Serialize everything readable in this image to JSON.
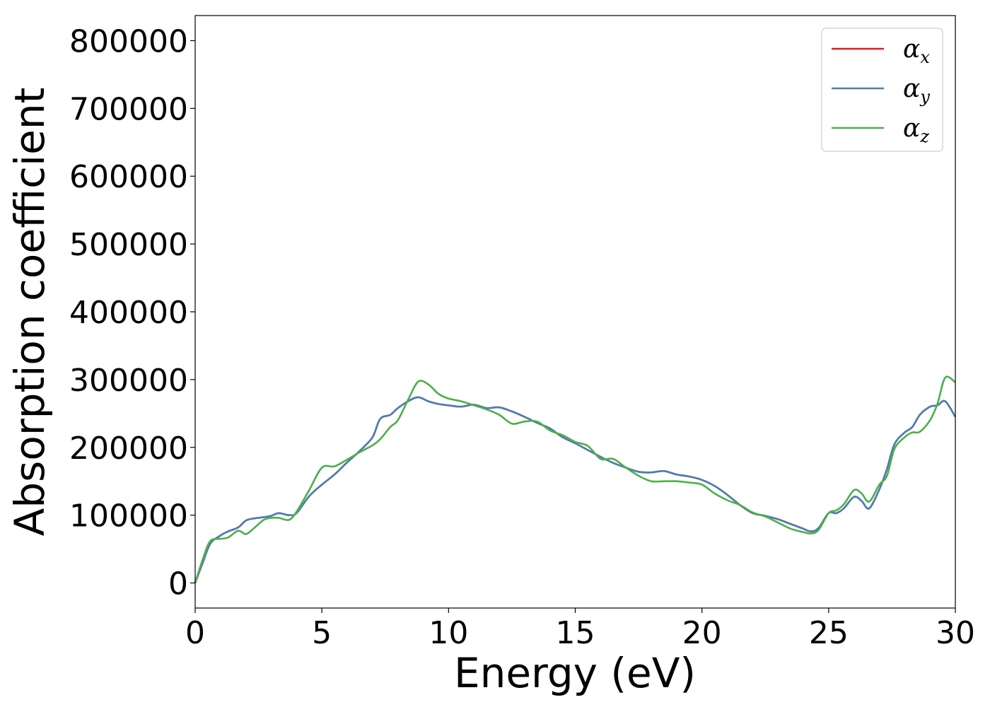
{
  "chart_data": {
    "type": "line",
    "title": "",
    "xlabel": "Energy (eV)",
    "ylabel": "Absorption coefficient",
    "xlim": [
      0,
      30
    ],
    "ylim": [
      -37000,
      837000
    ],
    "xticks": [
      0,
      5,
      10,
      15,
      20,
      25,
      30
    ],
    "yticks": [
      0,
      100000,
      200000,
      300000,
      400000,
      500000,
      600000,
      700000,
      800000
    ],
    "grid": false,
    "legend": "top-right",
    "series": [
      {
        "name": "α",
        "name_sub": "x",
        "color": "#e41a1c",
        "x": [
          0,
          0.3,
          0.6,
          1,
          1.3,
          1.7,
          2,
          2.3,
          2.7,
          3,
          3.3,
          3.7,
          4,
          4.5,
          5,
          5.5,
          6,
          6.5,
          7,
          7.3,
          7.7,
          8,
          8.4,
          8.8,
          9.2,
          9.6,
          10,
          10.5,
          11,
          11.5,
          12,
          12.5,
          13,
          13.5,
          14,
          14.5,
          15,
          15.5,
          16,
          16.5,
          17,
          17.5,
          18,
          18.5,
          19,
          19.5,
          20,
          20.5,
          21,
          21.5,
          22,
          22.5,
          23,
          23.5,
          24,
          24.3,
          24.6,
          25,
          25.3,
          25.6,
          26,
          26.3,
          26.6,
          27,
          27.3,
          27.6,
          28,
          28.3,
          28.6,
          29,
          29.3,
          29.6,
          30
        ],
        "y": [
          0,
          30000,
          58000,
          70000,
          76000,
          82000,
          92000,
          95000,
          97000,
          99000,
          103000,
          100000,
          103000,
          128000,
          145000,
          160000,
          178000,
          195000,
          215000,
          242000,
          248000,
          258000,
          268000,
          274000,
          268000,
          264000,
          262000,
          260000,
          263000,
          258000,
          259000,
          253000,
          245000,
          236000,
          228000,
          215000,
          206000,
          196000,
          186000,
          177000,
          170000,
          164000,
          163000,
          165000,
          160000,
          157000,
          152000,
          143000,
          130000,
          115000,
          103000,
          99000,
          94000,
          87000,
          80000,
          76000,
          81000,
          103000,
          103000,
          110000,
          127000,
          121000,
          110000,
          138000,
          168000,
          205000,
          222000,
          230000,
          248000,
          260000,
          262000,
          268000,
          245000
        ]
      },
      {
        "name": "α",
        "name_sub": "y",
        "color": "#4a7fb3",
        "x": [
          0,
          0.3,
          0.6,
          1,
          1.3,
          1.7,
          2,
          2.3,
          2.7,
          3,
          3.3,
          3.7,
          4,
          4.5,
          5,
          5.5,
          6,
          6.5,
          7,
          7.3,
          7.7,
          8,
          8.4,
          8.8,
          9.2,
          9.6,
          10,
          10.5,
          11,
          11.5,
          12,
          12.5,
          13,
          13.5,
          14,
          14.5,
          15,
          15.5,
          16,
          16.5,
          17,
          17.5,
          18,
          18.5,
          19,
          19.5,
          20,
          20.5,
          21,
          21.5,
          22,
          22.5,
          23,
          23.5,
          24,
          24.3,
          24.6,
          25,
          25.3,
          25.6,
          26,
          26.3,
          26.6,
          27,
          27.3,
          27.6,
          28,
          28.3,
          28.6,
          29,
          29.3,
          29.6,
          30
        ],
        "y": [
          0,
          30000,
          58000,
          70000,
          76000,
          82000,
          92000,
          95000,
          97000,
          99000,
          103000,
          100000,
          103000,
          128000,
          145000,
          160000,
          178000,
          195000,
          215000,
          242000,
          248000,
          258000,
          268000,
          274000,
          268000,
          264000,
          262000,
          260000,
          263000,
          258000,
          259000,
          253000,
          245000,
          236000,
          228000,
          215000,
          206000,
          196000,
          186000,
          177000,
          170000,
          164000,
          163000,
          165000,
          160000,
          157000,
          152000,
          143000,
          130000,
          115000,
          103000,
          99000,
          94000,
          87000,
          80000,
          76000,
          81000,
          103000,
          103000,
          110000,
          127000,
          121000,
          110000,
          138000,
          168000,
          205000,
          222000,
          230000,
          248000,
          260000,
          262000,
          268000,
          245000
        ]
      },
      {
        "name": "α",
        "name_sub": "z",
        "color": "#4daf4a",
        "x": [
          0,
          0.3,
          0.6,
          1,
          1.3,
          1.7,
          2,
          2.3,
          2.7,
          3,
          3.3,
          3.7,
          4,
          4.5,
          5,
          5.5,
          6,
          6.5,
          7,
          7.3,
          7.7,
          8,
          8.4,
          8.8,
          9.2,
          9.6,
          10,
          10.5,
          11,
          11.5,
          12,
          12.5,
          13,
          13.5,
          14,
          14.5,
          15,
          15.5,
          16,
          16.5,
          17,
          17.5,
          18,
          18.5,
          19,
          19.5,
          20,
          20.5,
          21,
          21.5,
          22,
          22.5,
          23,
          23.5,
          24,
          24.3,
          24.6,
          25,
          25.3,
          25.6,
          26,
          26.3,
          26.6,
          27,
          27.3,
          27.6,
          28,
          28.3,
          28.6,
          29,
          29.3,
          29.6,
          30
        ],
        "y": [
          0,
          35000,
          62000,
          65000,
          67000,
          77000,
          72000,
          80000,
          93000,
          96000,
          96000,
          93000,
          105000,
          137000,
          170000,
          172000,
          182000,
          193000,
          203000,
          212000,
          230000,
          240000,
          270000,
          297000,
          293000,
          279000,
          272000,
          268000,
          262000,
          256000,
          248000,
          235000,
          238000,
          238000,
          225000,
          218000,
          208000,
          202000,
          183000,
          183000,
          170000,
          158000,
          150000,
          150000,
          150000,
          148000,
          145000,
          132000,
          122000,
          115000,
          104000,
          98000,
          89000,
          80000,
          75000,
          73000,
          78000,
          103000,
          107000,
          116000,
          137000,
          132000,
          120000,
          145000,
          158000,
          198000,
          215000,
          222000,
          223000,
          240000,
          265000,
          303000,
          296000
        ]
      }
    ]
  }
}
